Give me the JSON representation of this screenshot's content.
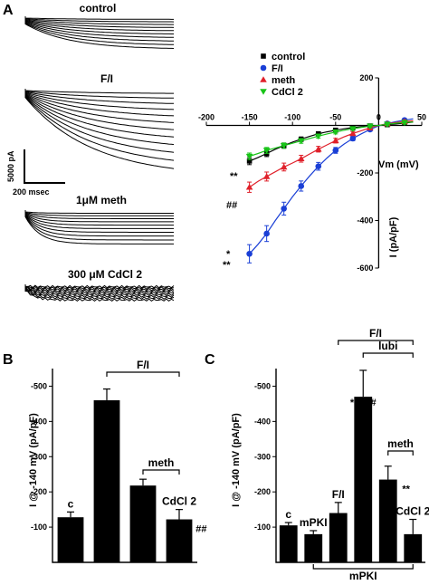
{
  "panels": {
    "a": "A",
    "b": "B",
    "c": "C"
  },
  "traces": {
    "labels": [
      "control",
      "F/I",
      "1μM meth",
      "300 μM CdCl 2"
    ],
    "scale_current": "5000 pA",
    "scale_time": "200 msec"
  },
  "chart_data": [
    {
      "type": "line",
      "panel": "A",
      "xlabel": "Vm (mV)",
      "ylabel": "I (pA/pF)",
      "xlim": [
        -200,
        50
      ],
      "ylim": [
        -600,
        200
      ],
      "xticks": [
        -200,
        -150,
        -100,
        -50,
        0,
        50
      ],
      "xtick_labels": [
        "-200",
        "-150",
        "-100",
        "-50",
        "0",
        "50"
      ],
      "yticks": [
        -600,
        -400,
        -200,
        200
      ],
      "ytick_labels": [
        "-600",
        "-400",
        "-200",
        "200"
      ],
      "legend_position": "top-left",
      "x": [
        -150,
        -140,
        -130,
        -120,
        -110,
        -100,
        -90,
        -80,
        -70,
        -60,
        -50,
        -40,
        -30,
        -20,
        -10,
        0,
        10,
        20,
        30,
        40
      ],
      "series": [
        {
          "name": "control",
          "color": "#000000",
          "marker": "square",
          "y": [
            -150,
            -135,
            -118,
            -100,
            -85,
            -70,
            -58,
            -46,
            -35,
            -27,
            -20,
            -14,
            -9,
            -5,
            -2,
            0,
            3,
            6,
            10,
            14
          ]
        },
        {
          "name": "F/I",
          "color": "#1a3fd6",
          "marker": "circle",
          "y": [
            -540,
            -500,
            -455,
            -400,
            -350,
            -300,
            -255,
            -212,
            -172,
            -137,
            -105,
            -78,
            -55,
            -35,
            -17,
            -2,
            8,
            16,
            22,
            28
          ]
        },
        {
          "name": "meth",
          "color": "#e0202a",
          "marker": "triangle-up",
          "y": [
            -260,
            -235,
            -215,
            -195,
            -175,
            -158,
            -140,
            -120,
            -100,
            -82,
            -64,
            -48,
            -34,
            -22,
            -10,
            0,
            7,
            12,
            16,
            20
          ]
        },
        {
          "name": "CdCl 2",
          "color": "#18c418",
          "marker": "triangle-down",
          "y": [
            -130,
            -118,
            -105,
            -95,
            -85,
            -75,
            -65,
            -55,
            -45,
            -36,
            -28,
            -20,
            -14,
            -8,
            -3,
            0,
            5,
            9,
            12,
            15
          ]
        }
      ],
      "annotations": [
        "*",
        "**",
        "##"
      ]
    },
    {
      "type": "bar",
      "panel": "B",
      "ylabel": "I @ -140 mV (pA/pF)",
      "ylim": [
        0,
        -550
      ],
      "yticks": [
        -100,
        -200,
        -300,
        -400,
        -500
      ],
      "ytick_labels": [
        "-100",
        "-200",
        "-300",
        "-400",
        "-500"
      ],
      "categories": [
        "c",
        "F/I",
        "meth",
        "CdCl 2"
      ],
      "values": [
        -128,
        -460,
        -218,
        -122
      ],
      "errors": [
        15,
        32,
        18,
        28
      ],
      "bar_labels": [
        "c",
        "",
        "",
        "CdCl 2"
      ],
      "significance": [
        "",
        "* #  **",
        "",
        "##"
      ],
      "brackets": [
        "F/I",
        "meth"
      ]
    },
    {
      "type": "bar",
      "panel": "C",
      "ylabel": "I @ -140 mV (pA/pF)",
      "ylim": [
        0,
        -550
      ],
      "yticks": [
        -100,
        -200,
        -300,
        -400,
        -500
      ],
      "ytick_labels": [
        "-100",
        "-200",
        "-300",
        "-400",
        "-500"
      ],
      "categories": [
        "c",
        "mPKI",
        "F/I",
        "lubi",
        "meth",
        "CdCl 2"
      ],
      "values": [
        -105,
        -80,
        -140,
        -470,
        -235,
        -80
      ],
      "errors": [
        8,
        10,
        30,
        75,
        38,
        42
      ],
      "bar_labels": [
        "c",
        "mPKI",
        "F/I",
        "",
        "",
        "CdCl 2"
      ],
      "significance": [
        "",
        "",
        "",
        "* #  ##",
        "**",
        ""
      ],
      "brackets": [
        "F/I",
        "lubi",
        "meth",
        "mPKI"
      ]
    }
  ]
}
